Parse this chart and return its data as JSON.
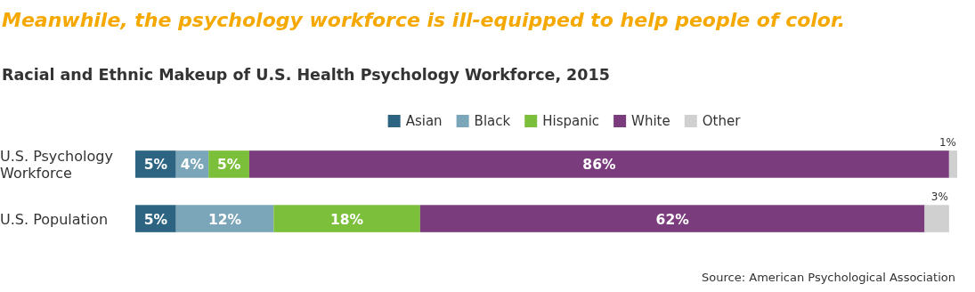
{
  "chart_data": {
    "type": "bar",
    "orientation": "horizontal",
    "stacked": true,
    "title": "Meanwhile, the psychology workforce is ill-equipped to help people of color.",
    "subtitle": "Racial and Ethnic Makeup of U.S. Health Psychology Workforce, 2015",
    "categories": [
      "U.S. Psychology Workforce",
      "U.S. Population"
    ],
    "series": [
      {
        "name": "Asian",
        "color": "#2c6482",
        "values": [
          5,
          5
        ],
        "value_labels": [
          "5%",
          "5%"
        ]
      },
      {
        "name": "Black",
        "color": "#7ba6b9",
        "values": [
          4,
          12
        ],
        "value_labels": [
          "4%",
          "12%"
        ]
      },
      {
        "name": "Hispanic",
        "color": "#7cbf3a",
        "values": [
          5,
          18
        ],
        "value_labels": [
          "5%",
          "18%"
        ]
      },
      {
        "name": "White",
        "color": "#7b3c7e",
        "values": [
          86,
          62
        ],
        "value_labels": [
          "86%",
          "62%"
        ]
      },
      {
        "name": "Other",
        "color": "#d0d0d0",
        "values": [
          1,
          3
        ],
        "value_labels": [
          "1%",
          "3%"
        ]
      }
    ],
    "legend": "top",
    "annotations": [
      "Source: American Psychological Association"
    ]
  }
}
